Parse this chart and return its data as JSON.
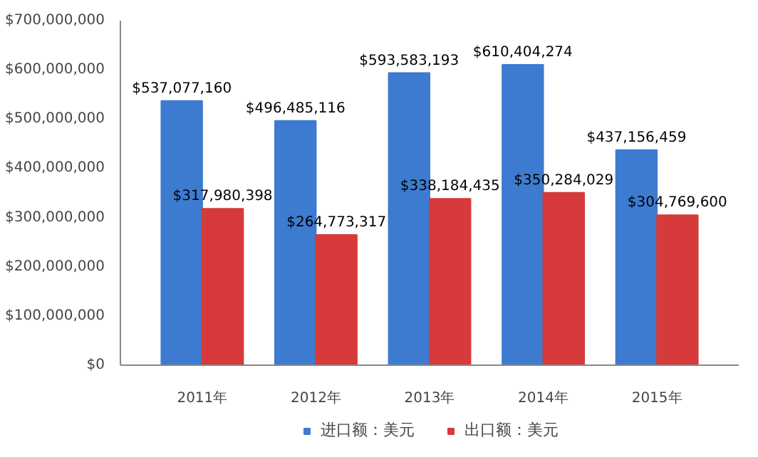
{
  "chart_data": {
    "type": "bar",
    "categories": [
      "2011年",
      "2012年",
      "2013年",
      "2014年",
      "2015年"
    ],
    "series": [
      {
        "name": "进口额：美元",
        "color": "#3d7bd0",
        "values": [
          537077160,
          496485116,
          593583193,
          610404274,
          437156459
        ],
        "value_labels": [
          "$537,077,160",
          "$496,485,116",
          "$593,583,193",
          "$610,404,274",
          "$437,156,459"
        ]
      },
      {
        "name": "出口额：美元",
        "color": "#d63a3a",
        "values": [
          317980398,
          264773317,
          338184435,
          350284029,
          304769600
        ],
        "value_labels": [
          "$317,980,398",
          "$264,773,317",
          "$338,184,435",
          "$350,284,029",
          "$304,769,600"
        ]
      }
    ],
    "ylim": [
      0,
      700000000
    ],
    "yticks": [
      {
        "value": 0,
        "label": "$0"
      },
      {
        "value": 100000000,
        "label": "$100,000,000"
      },
      {
        "value": 200000000,
        "label": "$200,000,000"
      },
      {
        "value": 300000000,
        "label": "$300,000,000"
      },
      {
        "value": 400000000,
        "label": "$400,000,000"
      },
      {
        "value": 500000000,
        "label": "$500,000,000"
      },
      {
        "value": 600000000,
        "label": "$600,000,000"
      },
      {
        "value": 700000000,
        "label": "$700,000,000"
      }
    ],
    "grid": false,
    "legend": "bottom"
  }
}
